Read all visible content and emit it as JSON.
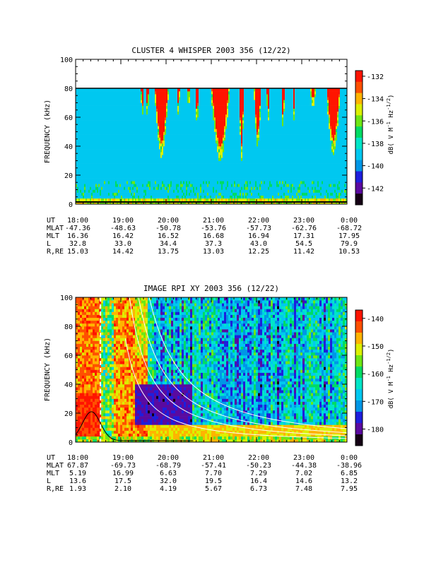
{
  "chart_data": [
    {
      "type": "heatmap",
      "title": "CLUSTER 4 WHISPER 2003 356 (12/22)",
      "ylabel": "FREQUENCY (kHz)",
      "ylim": [
        0,
        100
      ],
      "yticks": [
        "0",
        "20",
        "40",
        "60",
        "80",
        "100"
      ],
      "ytick_values": [
        0,
        20,
        40,
        60,
        80,
        100
      ],
      "xlim_hours": [
        18,
        24
      ],
      "xticks": [
        "18:00",
        "19:00",
        "20:00",
        "21:00",
        "22:00",
        "23:00",
        "0:00"
      ],
      "xtick_hours": [
        18,
        19,
        20,
        21,
        22,
        23,
        24
      ],
      "colorbar": {
        "label": "dB( V M^-1 Hz^-1/2)",
        "label_text": "dB( V M",
        "label_sup1": "-1",
        "label_mid": " Hz",
        "label_sup2": "-1/2",
        "label_end": ")",
        "range": [
          -143.5,
          -131.5
        ],
        "ticks": [
          "-132",
          "-134",
          "-136",
          "-138",
          "-140",
          "-142"
        ],
        "tick_values": [
          -132,
          -134,
          -136,
          -138,
          -140,
          -142
        ],
        "colors": [
          "#140014",
          "#5a0aa0",
          "#1e1edc",
          "#0096e6",
          "#00c8f0",
          "#00e6c8",
          "#00dc64",
          "#6ee614",
          "#dcf000",
          "#ffb400",
          "#ff5000",
          "#ff1400"
        ]
      },
      "background_level": -139,
      "data_ceiling_khz": 80,
      "bursts": [
        {
          "t_start": 19.45,
          "t_end": 19.5,
          "min_khz": 64
        },
        {
          "t_start": 19.55,
          "t_end": 19.62,
          "min_khz": 68
        },
        {
          "t_start": 19.75,
          "t_end": 20.05,
          "min_khz": 38
        },
        {
          "t_start": 20.25,
          "t_end": 20.3,
          "min_khz": 66
        },
        {
          "t_start": 20.48,
          "t_end": 20.52,
          "min_khz": 70
        },
        {
          "t_start": 20.65,
          "t_end": 20.72,
          "min_khz": 60
        },
        {
          "t_start": 21.0,
          "t_end": 21.4,
          "min_khz": 35
        },
        {
          "t_start": 21.62,
          "t_end": 21.72,
          "min_khz": 36
        },
        {
          "t_start": 21.95,
          "t_end": 22.1,
          "min_khz": 44
        },
        {
          "t_start": 22.23,
          "t_end": 22.28,
          "min_khz": 58
        },
        {
          "t_start": 22.55,
          "t_end": 22.62,
          "min_khz": 58
        },
        {
          "t_start": 22.8,
          "t_end": 22.85,
          "min_khz": 64
        },
        {
          "t_start": 23.2,
          "t_end": 23.3,
          "min_khz": 72
        },
        {
          "t_start": 23.55,
          "t_end": 23.85,
          "min_khz": 40
        }
      ]
    },
    {
      "type": "heatmap",
      "title": "IMAGE RPI XY 2003 356 (12/22)",
      "ylabel": "FREQUENCY (kHz)",
      "ylim": [
        0,
        100
      ],
      "yticks": [
        "0",
        "20",
        "40",
        "60",
        "80",
        "100"
      ],
      "ytick_values": [
        0,
        20,
        40,
        60,
        80,
        100
      ],
      "xlim_hours": [
        18,
        24
      ],
      "xticks": [
        "18:00",
        "19:00",
        "20:00",
        "21:00",
        "22:00",
        "23:00",
        "0:00"
      ],
      "xtick_hours": [
        18,
        19,
        20,
        21,
        22,
        23,
        24
      ],
      "colorbar": {
        "label": "dB( V M^-1 Hz^-1/2)",
        "label_text": "dB( V M",
        "label_sup1": "-1",
        "label_mid": " Hz",
        "label_sup2": "-1/2",
        "label_end": ")",
        "range": [
          -186,
          -137
        ],
        "ticks": [
          "-140",
          "-150",
          "-160",
          "-170",
          "-180"
        ],
        "tick_values": [
          -140,
          -150,
          -160,
          -170,
          -180
        ],
        "colors": [
          "#140014",
          "#5a0aa0",
          "#1e1edc",
          "#0096e6",
          "#00c8f0",
          "#00e6c8",
          "#00dc64",
          "#6ee614",
          "#dcf000",
          "#ffb400",
          "#ff5000",
          "#ff1400"
        ]
      },
      "white_curve_scales": [
        0.75,
        1.3,
        1.9,
        2.7
      ],
      "black_curve": {
        "peak_khz": 20,
        "peak_hour": 18.35
      }
    }
  ],
  "ephemeris": [
    {
      "rows": [
        {
          "label": "UT",
          "values": [
            "18:00",
            "19:00",
            "20:00",
            "21:00",
            "22:00",
            "23:00",
            "0:00"
          ]
        },
        {
          "label": "MLAT",
          "values": [
            "-47.36",
            "-48.63",
            "-50.78",
            "-53.76",
            "-57.73",
            "-62.76",
            "-68.72"
          ]
        },
        {
          "label": "MLT",
          "values": [
            "16.36",
            "16.42",
            "16.52",
            "16.68",
            "16.94",
            "17.31",
            "17.95"
          ]
        },
        {
          "label": "L",
          "values": [
            "32.8",
            "33.0",
            "34.4",
            "37.3",
            "43.0",
            "54.5",
            "79.9"
          ]
        },
        {
          "label": "R,RE",
          "values": [
            "15.03",
            "14.42",
            "13.75",
            "13.03",
            "12.25",
            "11.42",
            "10.53"
          ]
        }
      ]
    },
    {
      "rows": [
        {
          "label": "UT",
          "values": [
            "18:00",
            "19:00",
            "20:00",
            "21:00",
            "22:00",
            "23:00",
            "0:00"
          ]
        },
        {
          "label": "MLAT",
          "values": [
            "67.87",
            "-69.73",
            "-68.79",
            "-57.41",
            "-50.23",
            "-44.38",
            "-38.96"
          ]
        },
        {
          "label": "MLT",
          "values": [
            "5.19",
            "16.99",
            "6.63",
            "7.70",
            "7.29",
            "7.02",
            "6.85"
          ]
        },
        {
          "label": "L",
          "values": [
            "13.6",
            "17.5",
            "32.0",
            "19.5",
            "16.4",
            "14.6",
            "13.2"
          ]
        },
        {
          "label": "R,RE",
          "values": [
            "1.93",
            "2.10",
            "4.19",
            "5.67",
            "6.73",
            "7.48",
            "7.95"
          ]
        }
      ]
    }
  ]
}
